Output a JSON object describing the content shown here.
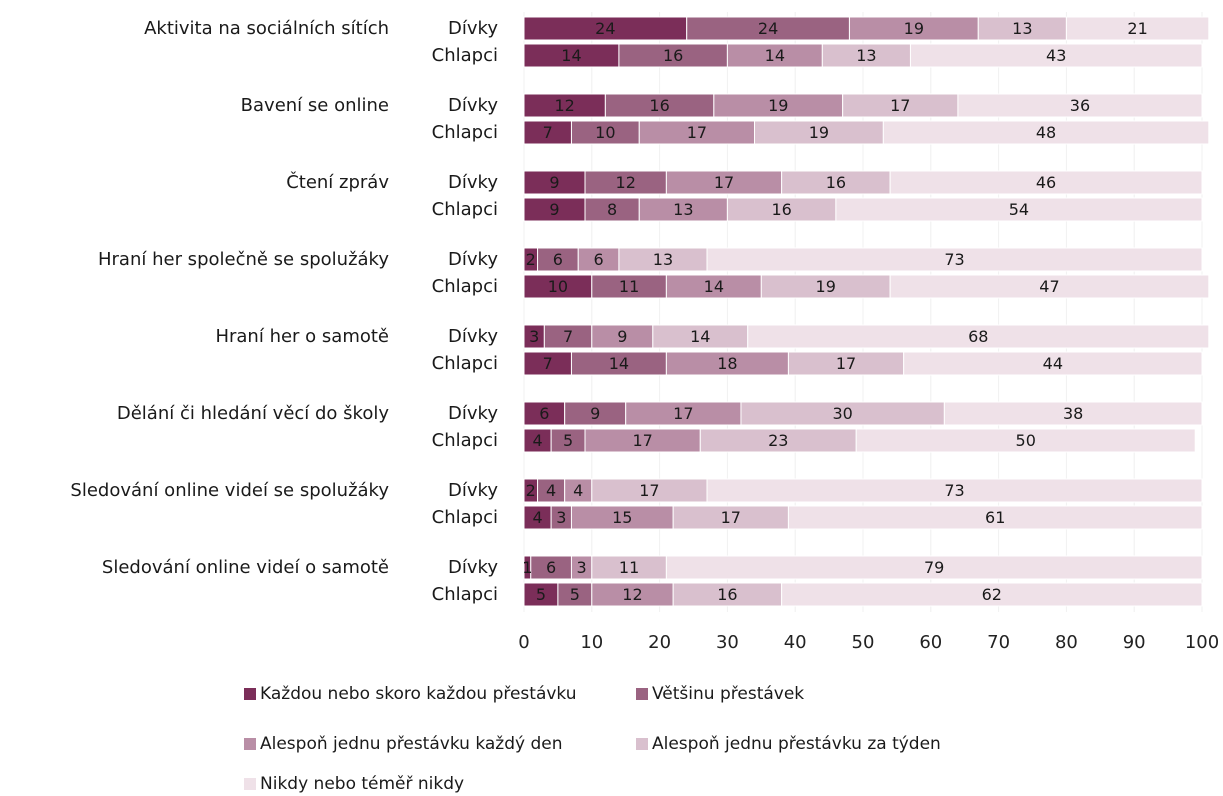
{
  "chart_data": {
    "type": "bar",
    "orientation": "horizontal",
    "stacked": true,
    "title": "",
    "xlabel": "",
    "ylabel": "",
    "xlim": [
      0,
      100
    ],
    "x_ticks": [
      0,
      10,
      20,
      30,
      40,
      50,
      60,
      70,
      80,
      90,
      100
    ],
    "grid": true,
    "legend_position": "bottom",
    "series_names": [
      "Každou nebo skoro každou přestávku",
      "Většinu přestávek",
      "Alespoň jednu přestávku každý den",
      "Alespoň jednu přestávku za týden",
      "Nikdy nebo téměř nikdy"
    ],
    "series_colors": [
      "#7b2e59",
      "#9a6381",
      "#b98ea6",
      "#d9c0ce",
      "#efe1e8"
    ],
    "groups": [
      {
        "category": "Aktivita na sociálních sítích",
        "rows": [
          {
            "label": "Dívky",
            "values": [
              24,
              24,
              19,
              13,
              21
            ]
          },
          {
            "label": "Chlapci",
            "values": [
              14,
              16,
              14,
              13,
              43
            ]
          }
        ]
      },
      {
        "category": "Bavení se online",
        "rows": [
          {
            "label": "Dívky",
            "values": [
              12,
              16,
              19,
              17,
              36
            ]
          },
          {
            "label": "Chlapci",
            "values": [
              7,
              10,
              17,
              19,
              48
            ]
          }
        ]
      },
      {
        "category": "Čtení zpráv",
        "rows": [
          {
            "label": "Dívky",
            "values": [
              9,
              12,
              17,
              16,
              46
            ]
          },
          {
            "label": "Chlapci",
            "values": [
              9,
              8,
              13,
              16,
              54
            ]
          }
        ]
      },
      {
        "category": "Hraní her společně se spolužáky",
        "rows": [
          {
            "label": "Dívky",
            "values": [
              2,
              6,
              6,
              13,
              73
            ]
          },
          {
            "label": "Chlapci",
            "values": [
              10,
              11,
              14,
              19,
              47
            ]
          }
        ]
      },
      {
        "category": "Hraní her o samotě",
        "rows": [
          {
            "label": "Dívky",
            "values": [
              3,
              7,
              9,
              14,
              68
            ]
          },
          {
            "label": "Chlapci",
            "values": [
              7,
              14,
              18,
              17,
              44
            ]
          }
        ]
      },
      {
        "category": "Dělání či hledání věcí do školy",
        "rows": [
          {
            "label": "Dívky",
            "values": [
              6,
              9,
              17,
              30,
              38
            ]
          },
          {
            "label": "Chlapci",
            "values": [
              4,
              5,
              17,
              23,
              50
            ]
          }
        ]
      },
      {
        "category": "Sledování online videí se spolužáky",
        "rows": [
          {
            "label": "Dívky",
            "values": [
              2,
              4,
              4,
              17,
              73
            ]
          },
          {
            "label": "Chlapci",
            "values": [
              4,
              3,
              15,
              17,
              61
            ]
          }
        ]
      },
      {
        "category": "Sledování online videí o samotě",
        "rows": [
          {
            "label": "Dívky",
            "values": [
              1,
              6,
              3,
              11,
              79
            ]
          },
          {
            "label": "Chlapci",
            "values": [
              5,
              5,
              12,
              16,
              62
            ]
          }
        ]
      }
    ]
  }
}
